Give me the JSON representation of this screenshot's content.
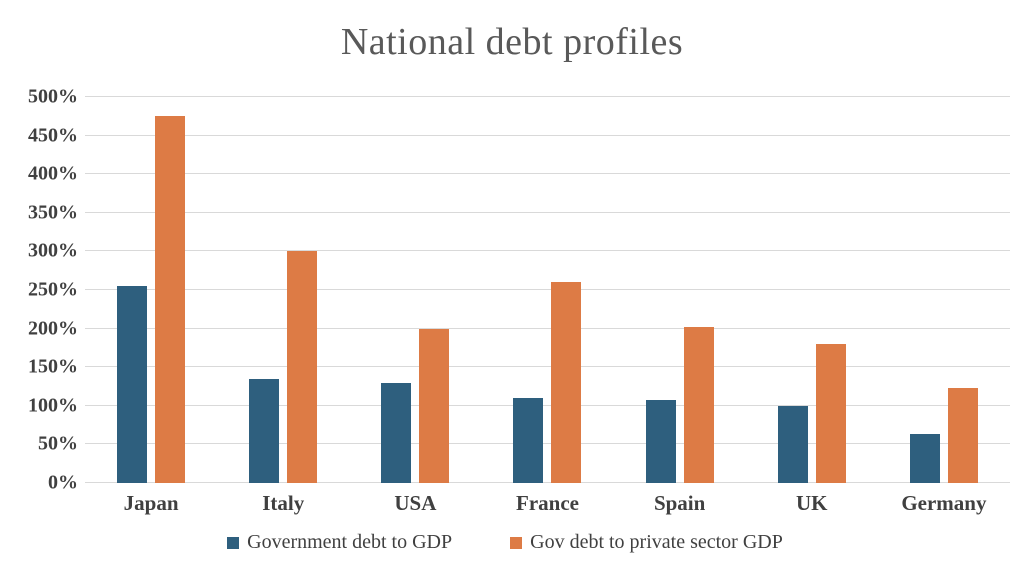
{
  "slide": {
    "title": "National debt profiles"
  },
  "chart_data": {
    "type": "bar",
    "title": "National debt profiles",
    "categories": [
      "Japan",
      "Italy",
      "USA",
      "France",
      "Spain",
      "UK",
      "Germany"
    ],
    "series": [
      {
        "name": "Government debt to GDP",
        "color": "#2E5F7E",
        "values": [
          255,
          135,
          130,
          110,
          107,
          100,
          63
        ]
      },
      {
        "name": "Gov debt to private sector GDP",
        "color": "#DD7B45",
        "values": [
          475,
          300,
          200,
          260,
          202,
          180,
          123
        ]
      }
    ],
    "ylabel": "",
    "xlabel": "",
    "ylim": [
      0,
      500
    ],
    "ytick_step": 50,
    "ytick_suffix": "%",
    "grid": "horizontal",
    "gridline_color": "#D9D9D9",
    "legend_position": "bottom",
    "title_color": "#595959",
    "axis_label_color": "#404040",
    "background_color": "#FFFFFF"
  }
}
